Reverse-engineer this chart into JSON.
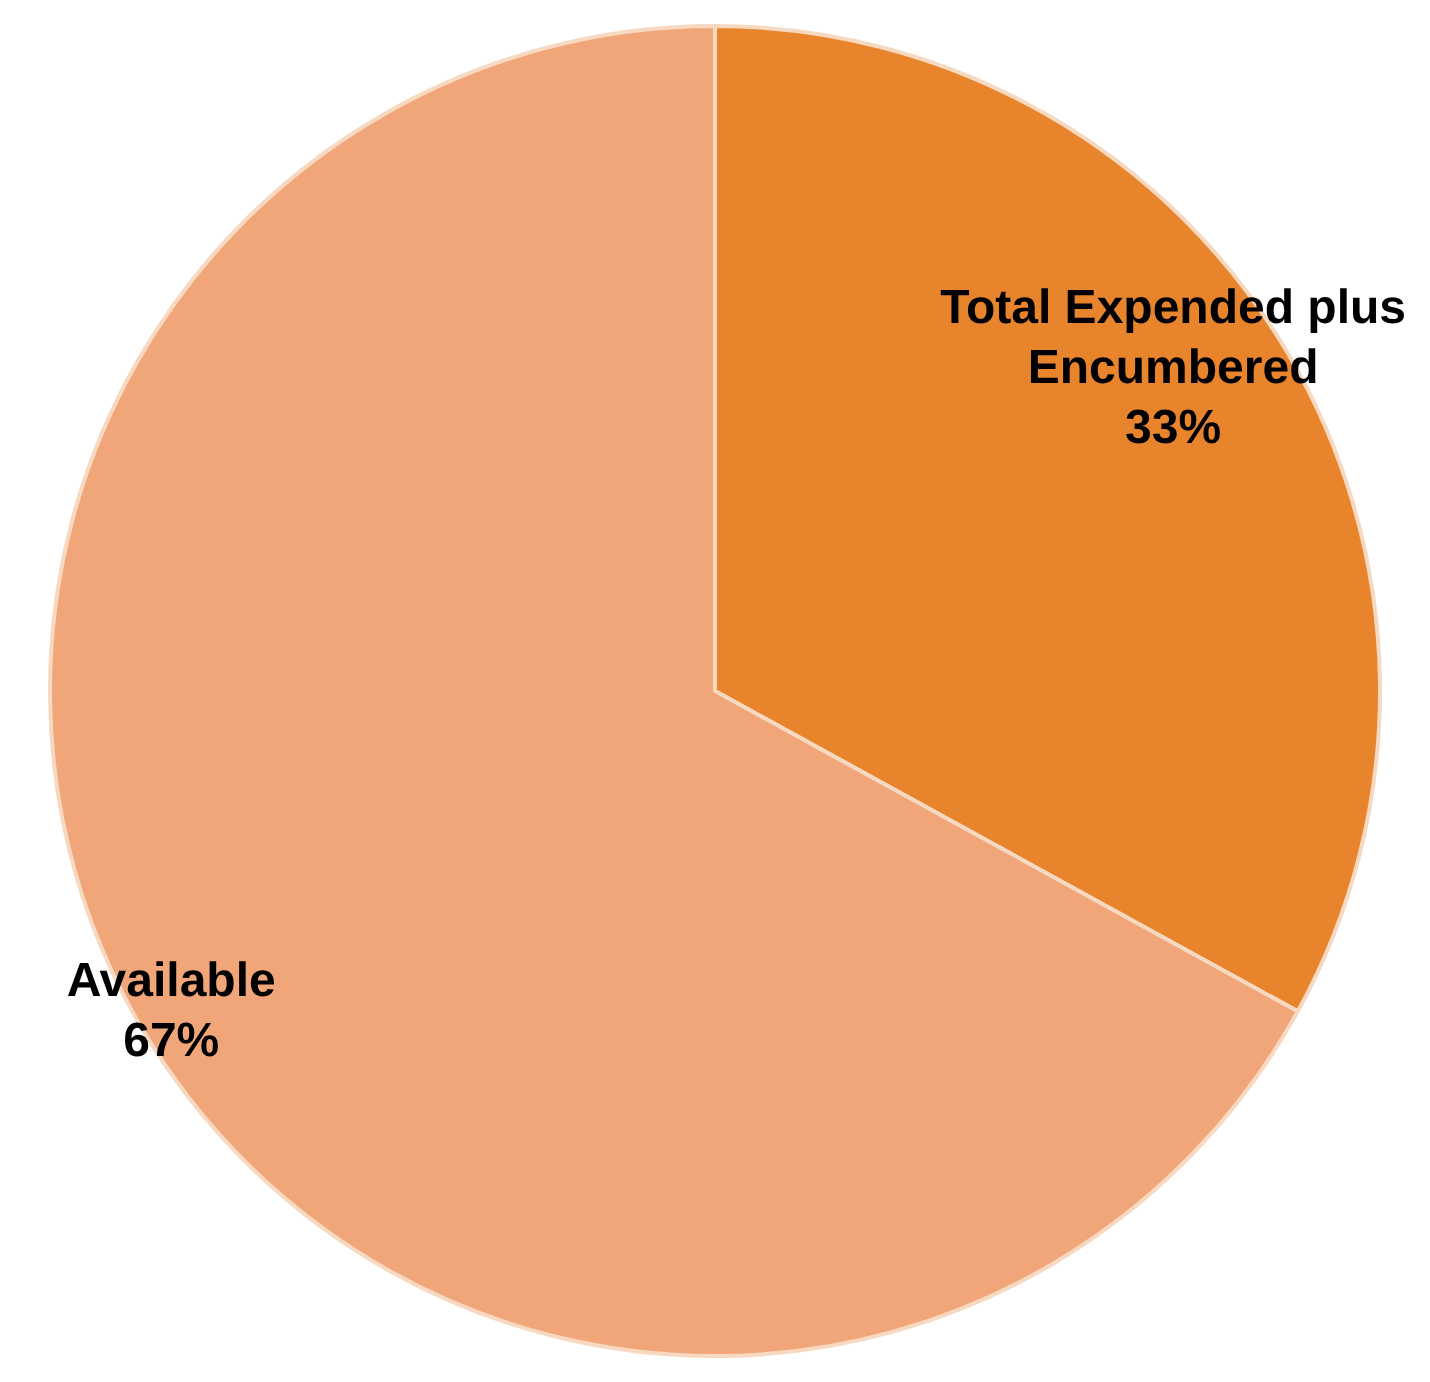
{
  "chart_data": {
    "type": "pie",
    "categories": [
      "Total Expended plus Encumbered",
      "Available"
    ],
    "values": [
      33,
      67
    ],
    "colors": [
      "#e8842c",
      "#f0a679"
    ],
    "value_labels": [
      "33%",
      "67%"
    ],
    "legend": false
  }
}
